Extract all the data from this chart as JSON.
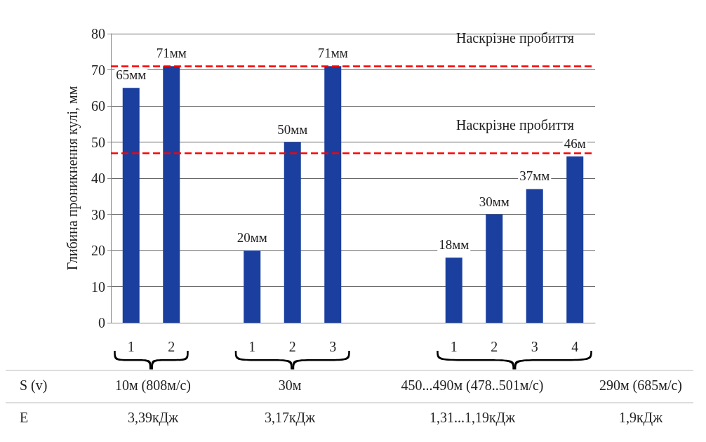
{
  "chart_data": {
    "type": "bar",
    "ylabel": "Глибина проникнення кулі, мм",
    "categories": [
      "1",
      "2",
      null,
      "1",
      "2",
      "3",
      null,
      null,
      "1",
      "2",
      "3",
      "4"
    ],
    "values": [
      65,
      71,
      null,
      20,
      50,
      71,
      null,
      null,
      18,
      30,
      37,
      46
    ],
    "value_labels": [
      "65мм",
      "71мм",
      null,
      "20мм",
      "50мм",
      "71мм",
      null,
      null,
      "18мм",
      "30мм",
      "37мм",
      "46м"
    ],
    "color": "#1a3f9e",
    "ylim": [
      0,
      80
    ],
    "yticks": [
      0,
      10,
      20,
      30,
      40,
      50,
      60,
      70,
      80
    ],
    "grid": "y",
    "ref_lines": [
      {
        "axis": "y",
        "value": 71,
        "label": "Наскрізне пробиття",
        "color": "#ff0000",
        "line_style": "dashed"
      },
      {
        "axis": "y",
        "value": 47,
        "label": "Наскрізне пробиття",
        "color": "#ff0000",
        "line_style": "dashed"
      }
    ],
    "annotations": [
      "S (v)",
      "10м (808м/с)",
      "30м",
      "450...490м (478..501м/с)",
      "290м (685м/с)",
      "E",
      "3,39кДж",
      "3,17кДж",
      "1,31...1,19кДж",
      "1,9кДж"
    ]
  }
}
